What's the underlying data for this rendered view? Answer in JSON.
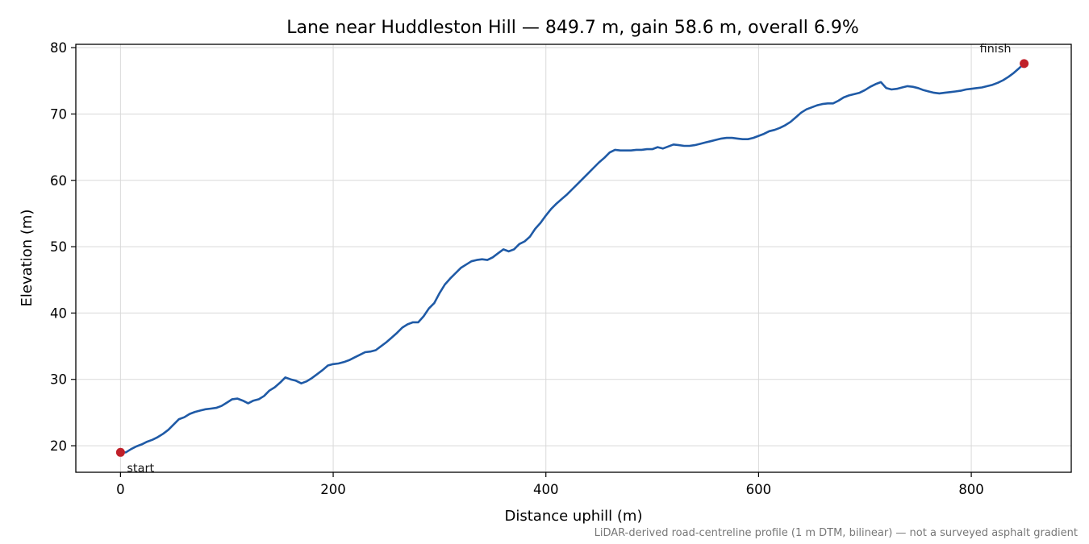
{
  "chart_data": {
    "type": "line",
    "title": "Lane near Huddleston Hill — 849.7 m, gain 58.6 m, overall 6.9%",
    "xlabel": "Distance uphill (m)",
    "ylabel": "Elevation (m)",
    "xlim": [
      -42,
      894
    ],
    "ylim": [
      16,
      80.5
    ],
    "xticks": [
      0,
      200,
      400,
      600,
      800
    ],
    "yticks": [
      20,
      30,
      40,
      50,
      60,
      70,
      80
    ],
    "grid": true,
    "line_color": "#1f5aa6",
    "marker_color": "#c0202a",
    "series": [
      {
        "x": [
          0,
          5,
          10,
          15,
          20,
          25,
          30,
          35,
          40,
          45,
          50,
          55,
          60,
          65,
          70,
          75,
          80,
          85,
          90,
          95,
          100,
          105,
          110,
          115,
          120,
          125,
          130,
          135,
          140,
          145,
          150,
          155,
          160,
          165,
          170,
          175,
          180,
          185,
          190,
          195,
          200,
          205,
          210,
          215,
          220,
          225,
          230,
          235,
          240,
          245,
          250,
          255,
          260,
          265,
          270,
          275,
          280,
          285,
          290,
          295,
          300,
          305,
          310,
          315,
          320,
          325,
          330,
          335,
          340,
          345,
          350,
          355,
          360,
          365,
          370,
          375,
          380,
          385,
          390,
          395,
          400,
          405,
          410,
          415,
          420,
          425,
          430,
          435,
          440,
          445,
          450,
          455,
          460,
          465,
          470,
          475,
          480,
          485,
          490,
          495,
          500,
          505,
          510,
          515,
          520,
          525,
          530,
          535,
          540,
          545,
          550,
          555,
          560,
          565,
          570,
          575,
          580,
          585,
          590,
          595,
          600,
          605,
          610,
          615,
          620,
          625,
          630,
          635,
          640,
          645,
          650,
          655,
          660,
          665,
          670,
          675,
          680,
          685,
          690,
          695,
          700,
          705,
          710,
          715,
          720,
          725,
          730,
          735,
          740,
          745,
          750,
          755,
          760,
          765,
          770,
          775,
          780,
          785,
          790,
          795,
          800,
          805,
          810,
          815,
          820,
          825,
          830,
          835,
          840,
          845,
          849.7
        ],
        "y": [
          19.0,
          19.0,
          19.5,
          19.9,
          20.2,
          20.6,
          20.9,
          21.3,
          21.8,
          22.4,
          23.2,
          24.0,
          24.3,
          24.8,
          25.1,
          25.3,
          25.5,
          25.6,
          25.7,
          26.0,
          26.5,
          27.0,
          27.1,
          26.8,
          26.4,
          26.8,
          27.0,
          27.5,
          28.3,
          28.8,
          29.5,
          30.3,
          30.0,
          29.8,
          29.4,
          29.7,
          30.2,
          30.8,
          31.4,
          32.1,
          32.3,
          32.4,
          32.6,
          32.9,
          33.3,
          33.7,
          34.1,
          34.2,
          34.4,
          35.0,
          35.6,
          36.3,
          37.0,
          37.8,
          38.3,
          38.6,
          38.6,
          39.5,
          40.7,
          41.5,
          43.0,
          44.3,
          45.2,
          46.0,
          46.8,
          47.3,
          47.8,
          48.0,
          48.1,
          48.0,
          48.4,
          49.0,
          49.6,
          49.3,
          49.6,
          50.4,
          50.8,
          51.5,
          52.7,
          53.6,
          54.7,
          55.7,
          56.5,
          57.2,
          57.9,
          58.7,
          59.5,
          60.3,
          61.1,
          61.9,
          62.7,
          63.4,
          64.2,
          64.6,
          64.5,
          64.5,
          64.5,
          64.6,
          64.6,
          64.7,
          64.7,
          65.0,
          64.8,
          65.1,
          65.4,
          65.3,
          65.2,
          65.2,
          65.3,
          65.5,
          65.7,
          65.9,
          66.1,
          66.3,
          66.4,
          66.4,
          66.3,
          66.2,
          66.2,
          66.4,
          66.7,
          67.0,
          67.4,
          67.6,
          67.9,
          68.3,
          68.8,
          69.5,
          70.2,
          70.7,
          71.0,
          71.3,
          71.5,
          71.6,
          71.6,
          72.0,
          72.5,
          72.8,
          73.0,
          73.2,
          73.6,
          74.1,
          74.5,
          74.8,
          73.9,
          73.7,
          73.8,
          74.0,
          74.2,
          74.1,
          73.9,
          73.6,
          73.4,
          73.2,
          73.1,
          73.2,
          73.3,
          73.4,
          73.5,
          73.7,
          73.8,
          73.9,
          74.0,
          74.2,
          74.4,
          74.7,
          75.1,
          75.6,
          76.2,
          76.9,
          77.6
        ]
      }
    ],
    "annotations": [
      {
        "text": "start",
        "x": 0,
        "y": 19.0
      },
      {
        "text": "finish",
        "x": 849.7,
        "y": 77.6
      }
    ],
    "footnote": "LiDAR-derived road-centreline profile (1 m DTM, bilinear) — not a surveyed asphalt gradient"
  }
}
